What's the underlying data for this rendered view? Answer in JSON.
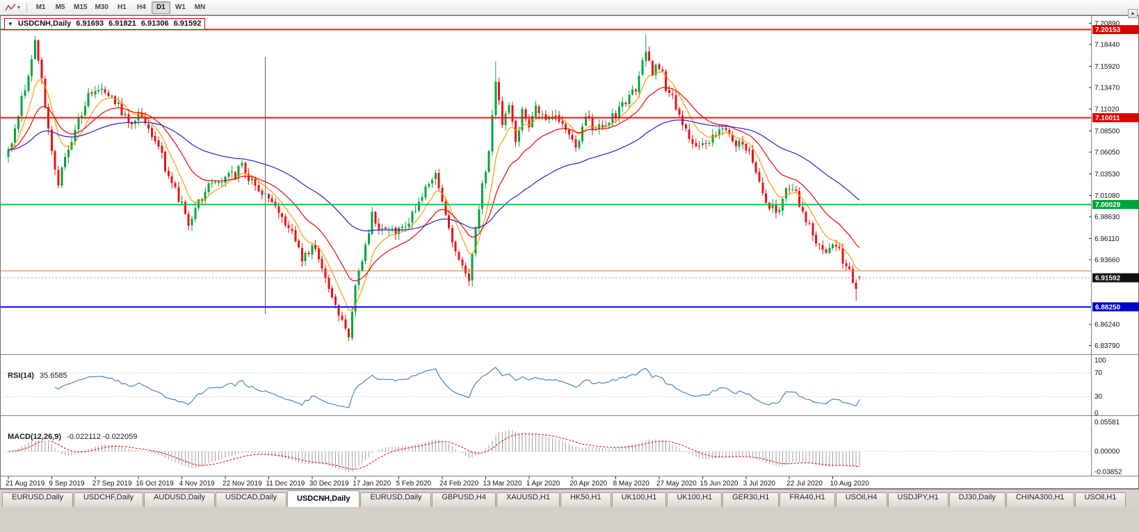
{
  "icons": {
    "dropdown_arrow": "▾",
    "title_marker": "▼",
    "scroll_up": "▲"
  },
  "toolbar": {
    "timeframes": [
      "M1",
      "M5",
      "M15",
      "M30",
      "H1",
      "H4",
      "D1",
      "W1",
      "MN"
    ],
    "active_timeframe": "D1"
  },
  "chart": {
    "title": {
      "symbol": "USDCNH,Daily",
      "open": "6.91693",
      "high": "6.91821",
      "low": "6.91306",
      "close": "6.91592"
    }
  },
  "chart_data": {
    "type": "candlestick",
    "symbol": "USDCNH",
    "timeframe": "Daily",
    "bars": 256,
    "seed": 20200821,
    "y_range": [
      6.828,
      7.218
    ],
    "current_ohlc": {
      "open": 6.91693,
      "high": 6.91821,
      "low": 6.91306,
      "close": 6.91592
    },
    "price_path_keypoints": [
      [
        0,
        7.06
      ],
      [
        3,
        7.105
      ],
      [
        6,
        7.152
      ],
      [
        8,
        7.185
      ],
      [
        10,
        7.15
      ],
      [
        12,
        7.085
      ],
      [
        15,
        7.026
      ],
      [
        18,
        7.066
      ],
      [
        21,
        7.096
      ],
      [
        24,
        7.124
      ],
      [
        28,
        7.136
      ],
      [
        32,
        7.12
      ],
      [
        36,
        7.094
      ],
      [
        40,
        7.106
      ],
      [
        44,
        7.076
      ],
      [
        48,
        7.034
      ],
      [
        52,
        7.0
      ],
      [
        54,
        6.978
      ],
      [
        57,
        7.006
      ],
      [
        60,
        7.02
      ],
      [
        64,
        7.03
      ],
      [
        68,
        7.036
      ],
      [
        70,
        7.048
      ],
      [
        72,
        7.03
      ],
      [
        75,
        7.016
      ],
      [
        78,
        7.008
      ],
      [
        82,
        6.98
      ],
      [
        85,
        6.964
      ],
      [
        88,
        6.936
      ],
      [
        91,
        6.952
      ],
      [
        94,
        6.93
      ],
      [
        97,
        6.896
      ],
      [
        100,
        6.864
      ],
      [
        102,
        6.85
      ],
      [
        103,
        6.882
      ],
      [
        105,
        6.926
      ],
      [
        107,
        6.956
      ],
      [
        109,
        6.986
      ],
      [
        111,
        6.976
      ],
      [
        114,
        6.966
      ],
      [
        117,
        6.972
      ],
      [
        120,
        6.981
      ],
      [
        123,
        7.001
      ],
      [
        126,
        7.026
      ],
      [
        128,
        7.041
      ],
      [
        130,
        7.001
      ],
      [
        133,
        6.961
      ],
      [
        136,
        6.926
      ],
      [
        138,
        6.916
      ],
      [
        140,
        6.976
      ],
      [
        142,
        7.021
      ],
      [
        144,
        7.066
      ],
      [
        146,
        7.146
      ],
      [
        148,
        7.096
      ],
      [
        150,
        7.116
      ],
      [
        152,
        7.071
      ],
      [
        154,
        7.106
      ],
      [
        156,
        7.086
      ],
      [
        158,
        7.116
      ],
      [
        161,
        7.096
      ],
      [
        164,
        7.106
      ],
      [
        167,
        7.081
      ],
      [
        170,
        7.066
      ],
      [
        173,
        7.101
      ],
      [
        176,
        7.083
      ],
      [
        179,
        7.096
      ],
      [
        182,
        7.106
      ],
      [
        185,
        7.116
      ],
      [
        188,
        7.136
      ],
      [
        191,
        7.181
      ],
      [
        193,
        7.151
      ],
      [
        195,
        7.161
      ],
      [
        197,
        7.136
      ],
      [
        199,
        7.121
      ],
      [
        201,
        7.106
      ],
      [
        204,
        7.081
      ],
      [
        207,
        7.066
      ],
      [
        210,
        7.073
      ],
      [
        213,
        7.089
      ],
      [
        216,
        7.076
      ],
      [
        219,
        7.069
      ],
      [
        222,
        7.061
      ],
      [
        225,
        7.021
      ],
      [
        228,
        6.996
      ],
      [
        231,
        6.991
      ],
      [
        233,
        7.016
      ],
      [
        235,
        7.023
      ],
      [
        237,
        6.999
      ],
      [
        240,
        6.976
      ],
      [
        242,
        6.961
      ],
      [
        245,
        6.945
      ],
      [
        248,
        6.953
      ],
      [
        250,
        6.936
      ],
      [
        252,
        6.921
      ],
      [
        254,
        6.901
      ],
      [
        255,
        6.916
      ]
    ],
    "extremes": [
      [
        8,
        "h",
        7.1945
      ],
      [
        102,
        "l",
        6.8432
      ],
      [
        146,
        "h",
        7.1652
      ],
      [
        191,
        "h",
        7.1958
      ],
      [
        254,
        "l",
        6.8895
      ]
    ],
    "noise": {
      "close": 0.012,
      "open": 0.002,
      "wick": 0.006
    },
    "moving_averages": [
      {
        "type": "ema",
        "period": 8,
        "color": "#ff9900"
      },
      {
        "type": "ema",
        "period": 20,
        "color": "#ee0000"
      },
      {
        "type": "ema",
        "period": 60,
        "color": "#2222cc"
      }
    ],
    "horizontal_lines": [
      {
        "price": 7.20153,
        "color": "#ee1111",
        "width": 2,
        "label": "7.20153",
        "label_bg": "#dd0000"
      },
      {
        "price": 7.10011,
        "color": "#ee1111",
        "width": 2,
        "label": "7.10011",
        "label_bg": "#dd0000"
      },
      {
        "price": 7.00029,
        "color": "#00cc44",
        "width": 2,
        "label": "7.00029",
        "label_bg": "#00a33a"
      },
      {
        "price": 6.924,
        "color": "#cc7722",
        "width": 1,
        "label": null,
        "label_bg": null
      },
      {
        "price": 6.8825,
        "color": "#1111ee",
        "width": 2,
        "label": "6.88250",
        "label_bg": "#0000cc"
      }
    ],
    "current_price": {
      "value": 6.91592,
      "label": "6.91592",
      "label_bg": "#111111"
    },
    "vertical_line": {
      "bar": 77,
      "color": "#606060"
    },
    "price_axis_ticks": [
      7.2089,
      7.1844,
      7.1592,
      7.1347,
      7.1102,
      7.085,
      7.0605,
      7.0353,
      7.0108,
      6.9863,
      6.9611,
      6.9366,
      6.8624,
      6.8379
    ],
    "date_axis": {
      "bar_interval": 13,
      "labels": [
        "21 Aug 2019",
        "9 Sep 2019",
        "27 Sep 2019",
        "16 Oct 2019",
        "4 Nov 2019",
        "22 Nov 2019",
        "11 Dec 2019",
        "30 Dec 2019",
        "17 Jan 2020",
        "5 Feb 2020",
        "24 Feb 2020",
        "13 Mar 2020",
        "1 Apr 2020",
        "20 Apr 2020",
        "8 May 2020",
        "27 May 2020",
        "15 Jun 2020",
        "3 Jul 2020",
        "22 Jul 2020",
        "10 Aug 2020"
      ]
    },
    "colors": {
      "bull": "#00a53c",
      "bear": "#ed1111",
      "background": "#ffffff",
      "axis_text": "#111111"
    },
    "indicators": {
      "rsi": {
        "label": "RSI(14)",
        "value": "35.6585",
        "period": 14,
        "levels": [
          70,
          30
        ],
        "scale_labels": [
          "100",
          "70",
          "30",
          "0"
        ],
        "range": [
          0,
          100
        ],
        "line_color": "#3d7ab5",
        "level_color": "#9fb4d2"
      },
      "macd": {
        "label": "MACD(12,26,9)",
        "values": "-0.022112 -0.022059",
        "params": [
          12,
          26,
          9
        ],
        "scale_labels": [
          "0.05581",
          "0.00000",
          "-0.03852"
        ],
        "scale_values": [
          0.05581,
          0.0,
          -0.03852
        ],
        "range": [
          -0.043,
          0.062
        ],
        "hist_color": "#a0a0a0",
        "signal_color": "#ee0000"
      }
    }
  },
  "tabs": {
    "active_index": 4,
    "items": [
      "EURUSD,Daily",
      "USDCHF,Daily",
      "AUDUSD,Daily",
      "USDCAD,Daily",
      "USDCNH,Daily",
      "EURUSD,Daily",
      "GBPUSD,H4",
      "XAUUSD,H1",
      "HK50,H1",
      "UK100,H1",
      "UK100,H1",
      "GER30,H1",
      "FRA40,H1",
      "USOil,H4",
      "USDJPY,H1",
      "DJ30,Daily",
      "CHINA300,H1",
      "USOil,H1"
    ]
  }
}
